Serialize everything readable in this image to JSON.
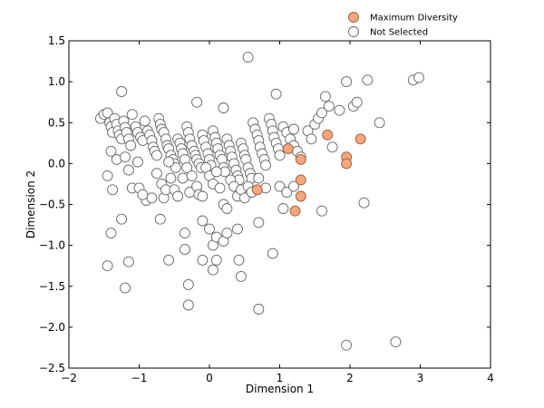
{
  "chart_data": {
    "type": "scatter",
    "xlabel": "Dimension 1",
    "ylabel": "Dimension 2",
    "xlim": [
      -2,
      4
    ],
    "ylim": [
      -2.5,
      1.5
    ],
    "xticks": [
      -2,
      -1,
      0,
      1,
      2,
      3,
      4
    ],
    "xtick_labels": [
      "−2",
      "−1",
      "0",
      "1",
      "2",
      "3",
      "4"
    ],
    "yticks": [
      -2.5,
      -2.0,
      -1.5,
      -1.0,
      -0.5,
      0.0,
      0.5,
      1.0,
      1.5
    ],
    "ytick_labels": [
      "−2.5",
      "−2.0",
      "−1.5",
      "−1.0",
      "−0.5",
      "0.0",
      "0.5",
      "1.0",
      "1.5"
    ],
    "grid": false,
    "legend_position": "top-right",
    "series": [
      {
        "name": "Not Selected",
        "color": "#ffffff",
        "edge_color": "#666666",
        "points": [
          [
            -1.55,
            0.55
          ],
          [
            -1.5,
            0.6
          ],
          [
            -1.45,
            0.62
          ],
          [
            -1.42,
            0.5
          ],
          [
            -1.4,
            0.45
          ],
          [
            -1.38,
            0.38
          ],
          [
            -1.35,
            0.55
          ],
          [
            -1.32,
            0.48
          ],
          [
            -1.3,
            0.4
          ],
          [
            -1.28,
            0.35
          ],
          [
            -1.25,
            0.3
          ],
          [
            -1.22,
            0.52
          ],
          [
            -1.2,
            0.44
          ],
          [
            -1.18,
            0.38
          ],
          [
            -1.15,
            0.3
          ],
          [
            -1.12,
            0.22
          ],
          [
            -1.1,
            0.6
          ],
          [
            -1.05,
            0.45
          ],
          [
            -1.02,
            0.38
          ],
          [
            -0.98,
            0.32
          ],
          [
            -0.95,
            0.28
          ],
          [
            -0.92,
            0.52
          ],
          [
            -0.88,
            0.4
          ],
          [
            -0.85,
            0.35
          ],
          [
            -0.82,
            0.28
          ],
          [
            -0.8,
            0.2
          ],
          [
            -0.78,
            0.15
          ],
          [
            -0.75,
            0.1
          ],
          [
            -0.72,
            0.55
          ],
          [
            -0.7,
            0.48
          ],
          [
            -0.68,
            0.42
          ],
          [
            -0.65,
            0.38
          ],
          [
            -0.62,
            0.3
          ],
          [
            -0.6,
            0.22
          ],
          [
            -0.58,
            0.18
          ],
          [
            -0.55,
            0.1
          ],
          [
            -0.52,
            0.05
          ],
          [
            -0.5,
            0.0
          ],
          [
            -0.48,
            -0.05
          ],
          [
            -0.45,
            0.3
          ],
          [
            -0.42,
            0.25
          ],
          [
            -0.4,
            0.18
          ],
          [
            -0.38,
            0.12
          ],
          [
            -0.35,
            0.05
          ],
          [
            -0.32,
            0.45
          ],
          [
            -0.3,
            0.38
          ],
          [
            -0.28,
            0.3
          ],
          [
            -0.25,
            0.22
          ],
          [
            -0.22,
            0.15
          ],
          [
            -0.2,
            0.1
          ],
          [
            -0.18,
            0.05
          ],
          [
            -0.15,
            0.0
          ],
          [
            -0.12,
            -0.05
          ],
          [
            -0.1,
            0.35
          ],
          [
            -0.08,
            0.28
          ],
          [
            -0.05,
            0.2
          ],
          [
            -0.02,
            0.12
          ],
          [
            0.0,
            0.05
          ],
          [
            0.02,
            -0.02
          ],
          [
            0.05,
            0.4
          ],
          [
            0.08,
            0.32
          ],
          [
            0.1,
            0.25
          ],
          [
            0.12,
            0.18
          ],
          [
            0.15,
            0.1
          ],
          [
            0.18,
            0.05
          ],
          [
            0.2,
            -0.05
          ],
          [
            0.22,
            -0.1
          ],
          [
            0.25,
            0.3
          ],
          [
            0.28,
            0.22
          ],
          [
            0.3,
            0.15
          ],
          [
            0.32,
            0.08
          ],
          [
            0.35,
            0.0
          ],
          [
            0.38,
            -0.08
          ],
          [
            0.4,
            -0.15
          ],
          [
            0.42,
            -0.2
          ],
          [
            0.45,
            0.25
          ],
          [
            0.48,
            0.18
          ],
          [
            0.5,
            0.1
          ],
          [
            0.52,
            0.05
          ],
          [
            0.55,
            -0.05
          ],
          [
            0.58,
            -0.12
          ],
          [
            0.6,
            -0.18
          ],
          [
            0.62,
            0.5
          ],
          [
            0.65,
            0.42
          ],
          [
            0.68,
            0.35
          ],
          [
            0.7,
            0.28
          ],
          [
            0.72,
            0.2
          ],
          [
            0.75,
            0.12
          ],
          [
            0.78,
            0.05
          ],
          [
            0.8,
            -0.02
          ],
          [
            0.85,
            0.55
          ],
          [
            0.88,
            0.48
          ],
          [
            0.9,
            0.4
          ],
          [
            0.92,
            0.32
          ],
          [
            0.95,
            0.25
          ],
          [
            0.98,
            0.18
          ],
          [
            1.0,
            0.1
          ],
          [
            1.05,
            0.45
          ],
          [
            1.1,
            0.38
          ],
          [
            1.15,
            0.3
          ],
          [
            1.2,
            0.22
          ],
          [
            1.25,
            0.15
          ],
          [
            1.3,
            0.08
          ],
          [
            1.4,
            0.4
          ],
          [
            1.45,
            0.3
          ],
          [
            1.5,
            0.48
          ],
          [
            1.55,
            0.55
          ],
          [
            1.6,
            0.62
          ],
          [
            1.65,
            0.82
          ],
          [
            1.7,
            0.7
          ],
          [
            1.75,
            0.2
          ],
          [
            1.85,
            0.65
          ],
          [
            1.95,
            1.0
          ],
          [
            2.05,
            0.7
          ],
          [
            2.1,
            0.75
          ],
          [
            2.25,
            1.02
          ],
          [
            2.42,
            0.5
          ],
          [
            2.9,
            1.02
          ],
          [
            2.98,
            1.05
          ],
          [
            0.55,
            1.3
          ],
          [
            -1.25,
            0.88
          ],
          [
            -0.18,
            0.75
          ],
          [
            0.2,
            0.68
          ],
          [
            0.95,
            0.85
          ],
          [
            1.2,
            0.42
          ],
          [
            -1.4,
            0.15
          ],
          [
            -1.45,
            -0.15
          ],
          [
            -1.38,
            -0.32
          ],
          [
            -1.32,
            0.05
          ],
          [
            -1.2,
            0.08
          ],
          [
            -1.15,
            -0.08
          ],
          [
            -1.1,
            -0.3
          ],
          [
            -1.02,
            0.02
          ],
          [
            -1.0,
            -0.3
          ],
          [
            -0.9,
            -0.45
          ],
          [
            -0.82,
            -0.42
          ],
          [
            -0.75,
            -0.12
          ],
          [
            -0.68,
            -0.25
          ],
          [
            -0.65,
            -0.42
          ],
          [
            -0.62,
            -0.32
          ],
          [
            -0.58,
            0.02
          ],
          [
            -0.55,
            -0.18
          ],
          [
            -0.5,
            -0.32
          ],
          [
            -0.45,
            -0.4
          ],
          [
            -0.38,
            -0.18
          ],
          [
            -0.32,
            -0.05
          ],
          [
            -0.28,
            -0.35
          ],
          [
            -0.25,
            -0.15
          ],
          [
            -0.18,
            -0.28
          ],
          [
            -0.15,
            -0.38
          ],
          [
            -0.1,
            -0.4
          ],
          [
            -0.05,
            -0.05
          ],
          [
            0.0,
            -0.15
          ],
          [
            0.05,
            -0.25
          ],
          [
            0.1,
            -0.1
          ],
          [
            0.15,
            -0.3
          ],
          [
            0.2,
            -0.5
          ],
          [
            0.25,
            -0.55
          ],
          [
            0.3,
            -0.2
          ],
          [
            0.35,
            -0.28
          ],
          [
            0.4,
            -0.4
          ],
          [
            0.45,
            -0.32
          ],
          [
            0.5,
            -0.42
          ],
          [
            0.55,
            -0.28
          ],
          [
            0.6,
            -0.35
          ],
          [
            0.7,
            -0.18
          ],
          [
            0.8,
            -0.3
          ],
          [
            1.0,
            -0.28
          ],
          [
            1.05,
            -0.55
          ],
          [
            1.1,
            -0.35
          ],
          [
            1.2,
            -0.28
          ],
          [
            1.6,
            -0.58
          ],
          [
            2.2,
            -0.48
          ],
          [
            0.9,
            -1.1
          ],
          [
            -1.4,
            -0.85
          ],
          [
            -1.25,
            -0.68
          ],
          [
            -1.15,
            -1.2
          ],
          [
            -1.2,
            -1.52
          ],
          [
            -1.45,
            -1.25
          ],
          [
            -0.95,
            -0.38
          ],
          [
            -0.7,
            -0.68
          ],
          [
            -0.58,
            -1.18
          ],
          [
            -0.35,
            -0.85
          ],
          [
            -0.35,
            -1.05
          ],
          [
            -0.3,
            -1.48
          ],
          [
            -0.3,
            -1.73
          ],
          [
            -0.1,
            -0.7
          ],
          [
            -0.1,
            -1.18
          ],
          [
            0.0,
            -0.8
          ],
          [
            0.05,
            -1.0
          ],
          [
            0.05,
            -1.3
          ],
          [
            0.1,
            -0.9
          ],
          [
            0.1,
            -1.18
          ],
          [
            0.2,
            -0.95
          ],
          [
            0.25,
            -0.85
          ],
          [
            0.4,
            -0.8
          ],
          [
            0.42,
            -1.18
          ],
          [
            0.45,
            -1.38
          ],
          [
            0.7,
            -0.72
          ],
          [
            0.7,
            -1.78
          ],
          [
            1.95,
            -2.22
          ],
          [
            2.65,
            -2.18
          ]
        ]
      },
      {
        "name": "Maximum Diversity",
        "color": "#f4a77c",
        "edge_color": "#9e5a3a",
        "points": [
          [
            0.68,
            -0.32
          ],
          [
            1.12,
            0.18
          ],
          [
            1.3,
            0.05
          ],
          [
            1.3,
            -0.2
          ],
          [
            1.3,
            -0.4
          ],
          [
            1.22,
            -0.58
          ],
          [
            1.68,
            0.35
          ],
          [
            1.95,
            0.08
          ],
          [
            1.95,
            0.0
          ],
          [
            2.15,
            0.3
          ]
        ]
      }
    ]
  }
}
